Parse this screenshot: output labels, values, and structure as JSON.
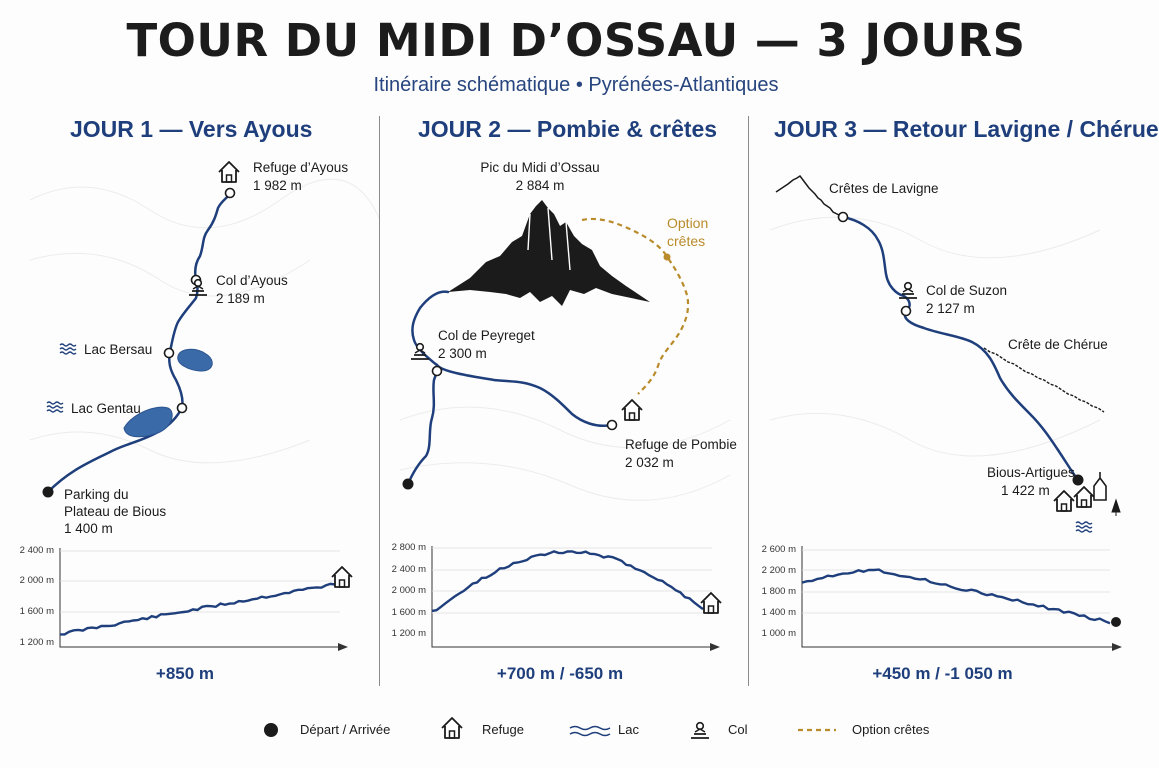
{
  "title": "TOUR DU MIDI D’OSSAU — 3 JOURS",
  "subtitle": "Itinéraire schématique • Pyrénées-Atlantiques",
  "colors": {
    "route": "#1f3f7c",
    "lake": "#3a6aa8",
    "option": "#b98b2a",
    "text": "#1b1b1b"
  },
  "days": [
    {
      "title": "JOUR 1 — Vers Ayous",
      "places": {
        "refuge": "Refuge d’Ayous",
        "refuge_alt": "1 982 m",
        "col": "Col d’Ayous",
        "col_alt": "2 189 m",
        "lac1": "Lac Bersau",
        "lac2": "Lac Gentau",
        "start1": "Parking du",
        "start2": "Plateau de Bious",
        "start_alt": "1 400 m"
      },
      "profile": {
        "yticks": [
          "2 400 m",
          "2 000 m",
          "1 600 m",
          "1 200 m"
        ]
      },
      "gain": "+850 m"
    },
    {
      "title": "JOUR 2 — Pombie & crêtes",
      "places": {
        "peak": "Pic du Midi d’Ossau",
        "peak_alt": "2 884 m",
        "option1": "Option",
        "option2": "crêtes",
        "col": "Col de Peyreget",
        "col_alt": "2 300 m",
        "refuge": "Refuge de Pombie",
        "refuge_alt": "2 032 m"
      },
      "profile": {
        "yticks": [
          "2 800 m",
          "2 400 m",
          "2 000 m",
          "1 600 m",
          "1 200 m"
        ]
      },
      "gain": "+700 m / -650 m"
    },
    {
      "title": "JOUR 3 — Retour Lavigne / Chérue",
      "places": {
        "cretes": "Crêtes de Lavigne",
        "col": "Col de Suzon",
        "col_alt": "2 127 m",
        "cherue": "Crête de Chérue",
        "end": "Bious-Artigues",
        "end_alt": "1 422 m"
      },
      "profile": {
        "yticks": [
          "2 600 m",
          "2 200 m",
          "1 800 m",
          "1 400 m",
          "1 000 m"
        ]
      },
      "gain": "+450 m / -1 050 m"
    }
  ],
  "legend": [
    {
      "label": "Départ / Arrivée",
      "icon": "start-dot-icon"
    },
    {
      "label": "Refuge",
      "icon": "hut-icon"
    },
    {
      "label": "Lac",
      "icon": "wave-icon"
    },
    {
      "label": "Col",
      "icon": "pass-icon"
    },
    {
      "label": "Option crêtes",
      "icon": "dashed-line-icon"
    }
  ]
}
